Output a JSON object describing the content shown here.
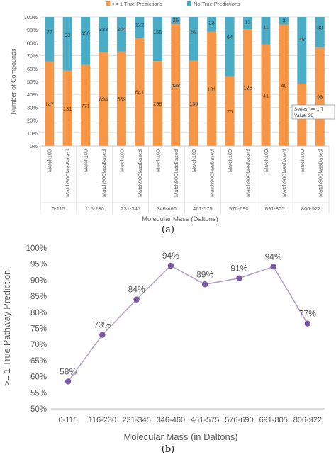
{
  "captions": {
    "a": "(a)",
    "b": "(b)"
  },
  "colors": {
    "orange": "#f79646",
    "teal": "#4bacc6",
    "purple": "#7b5ba6",
    "purple_line": "#b3a2c7",
    "grid": "#d9d9d9",
    "axis": "#bfbfbf",
    "text": "#595959"
  },
  "chart_data": [
    {
      "type": "bar",
      "stacked": "percent",
      "title": "",
      "xlabel": "Molecular Mass (Daltons)",
      "ylabel": "Number of Compounds",
      "ylim": [
        0,
        100
      ],
      "yticks": [
        "0%",
        "10%",
        "20%",
        "30%",
        "40%",
        "50%",
        "60%",
        "70%",
        "80%",
        "90%",
        "100%"
      ],
      "legend_position": "top",
      "groups": [
        "0-115",
        "116-230",
        "231-345",
        "346-460",
        "461-575",
        "576-690",
        "691-805",
        "806-922"
      ],
      "subcategories": [
        "Match100",
        "Match90ClassBased"
      ],
      "series": [
        {
          "name": ">= 1 True Predictions",
          "color": "#f79646",
          "values": [
            147,
            131,
            771,
            894,
            559,
            641,
            298,
            428,
            135,
            181,
            75,
            126,
            41,
            49,
            45,
            98
          ]
        },
        {
          "name": "No True Predictions",
          "color": "#4bacc6",
          "values": [
            77,
            93,
            456,
            333,
            204,
            122,
            155,
            25,
            69,
            23,
            64,
            13,
            11,
            3,
            48,
            30
          ]
        }
      ],
      "tooltip": {
        "line1": "Series \">= 1 T",
        "line2": "Value: 98"
      }
    },
    {
      "type": "line",
      "title": "",
      "xlabel": "Molecular Mass (in Daltons)",
      "ylabel": ">= 1 True Pathway Prediction",
      "ylim": [
        50,
        100
      ],
      "yticks": [
        "50%",
        "55%",
        "60%",
        "65%",
        "70%",
        "75%",
        "80%",
        "85%",
        "90%",
        "95%",
        "100%"
      ],
      "categories": [
        "0-115",
        "116-230",
        "231-345",
        "346-460",
        "461-575",
        "576-690",
        "691-805",
        "806-922"
      ],
      "values": [
        58.5,
        73,
        84,
        94.5,
        88.7,
        90.6,
        94.2,
        76.5
      ],
      "labels": [
        "58%",
        "73%",
        "84%",
        "94%",
        "89%",
        "91%",
        "94%",
        "77%"
      ]
    }
  ]
}
